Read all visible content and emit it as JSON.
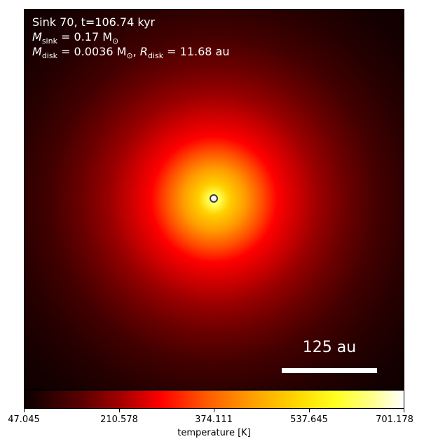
{
  "header": {
    "line1": "Sink 70, t=106.74 kyr",
    "m_sink_symbol": "M",
    "m_sink_sub": "sink",
    "m_sink_value": " = 0.17 M",
    "m_disk_symbol": "M",
    "m_disk_sub": "disk",
    "m_disk_value": " = 0.0036 M",
    "r_disk_symbol": "R",
    "r_disk_sub": "disk",
    "r_disk_value": " = 11.68 au",
    "sun_sub": "⊙"
  },
  "scalebar": {
    "label": "125 au"
  },
  "colorbar": {
    "label": "temperature [K]",
    "ticks": [
      "47.045",
      "210.578",
      "374.111",
      "537.645",
      "701.178"
    ],
    "colors": [
      "#0b0000",
      "#ff0000",
      "#ffff20",
      "#ffffff"
    ]
  }
}
